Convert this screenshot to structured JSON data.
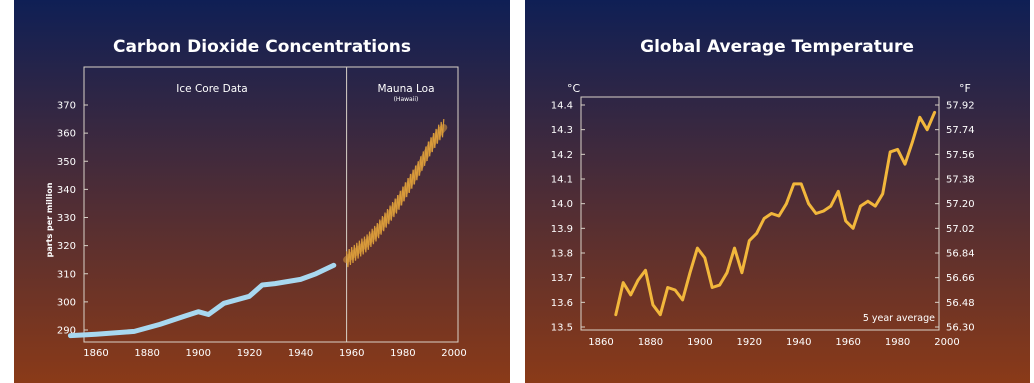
{
  "colors": {
    "panel_top": "#0f1f55",
    "panel_bottom": "#8a3a18",
    "ice_core_line": "#a8d8f0",
    "mauna_loa_line": "#d89a3a",
    "temperature_line": "#f2b73c",
    "text": "#ffffff",
    "frame": "#d9d2c8"
  },
  "chart_data": [
    {
      "type": "line",
      "title": "Carbon Dioxide Concentrations",
      "xlabel": "",
      "ylabel": "parts per million",
      "xlim": [
        1850,
        2000
      ],
      "ylim": [
        285,
        370
      ],
      "x_ticks": [
        1860,
        1880,
        1900,
        1920,
        1940,
        1960,
        1980,
        2000
      ],
      "y_ticks": [
        290,
        300,
        310,
        320,
        330,
        340,
        350,
        360,
        370
      ],
      "grid": false,
      "annotations": [
        {
          "text": "Ice Core Data"
        },
        {
          "text": "Mauna Loa"
        },
        {
          "text": "(Hawaii)"
        }
      ],
      "divider_x": 1958,
      "series": [
        {
          "name": "Ice Core Data",
          "x": [
            1850,
            1860,
            1875,
            1885,
            1895,
            1900,
            1904,
            1910,
            1920,
            1925,
            1930,
            1940,
            1946,
            1953
          ],
          "y": [
            288,
            288.5,
            289.5,
            292,
            295,
            296.5,
            295.5,
            299.5,
            302,
            306,
            306.5,
            308,
            310,
            313
          ]
        },
        {
          "name": "Mauna Loa",
          "x": [
            1958,
            1962,
            1966,
            1970,
            1974,
            1978,
            1982,
            1986,
            1990,
            1994,
            1996
          ],
          "y": [
            315,
            318,
            321,
            325,
            330,
            335,
            341,
            347,
            354,
            360,
            362
          ]
        }
      ]
    },
    {
      "type": "line",
      "title": "Global Average Temperature",
      "xlabel": "",
      "ylabel": "°C",
      "ylabel_right": "°F",
      "xlim": [
        1850,
        2000
      ],
      "ylim": [
        13.5,
        14.4
      ],
      "x_ticks": [
        1860,
        1880,
        1900,
        1920,
        1940,
        1960,
        1980,
        2000
      ],
      "y_ticks": [
        13.5,
        13.6,
        13.7,
        13.8,
        13.9,
        14.0,
        14.1,
        14.2,
        14.3,
        14.4
      ],
      "y_ticks_right": [
        56.3,
        56.48,
        56.66,
        56.84,
        57.02,
        57.2,
        57.38,
        57.56,
        57.74,
        57.92
      ],
      "y_ticks_right_labels": [
        "56.30",
        "56.48",
        "56.66",
        "56.84",
        "57.02",
        "57.20",
        "57.38",
        "57.56",
        "57.74",
        "57.92"
      ],
      "grid": false,
      "annotations": [
        {
          "text": "5 year average"
        }
      ],
      "series": [
        {
          "name": "5 year average",
          "x": [
            1866,
            1869,
            1872,
            1875,
            1878,
            1881,
            1884,
            1887,
            1890,
            1893,
            1896,
            1899,
            1902,
            1905,
            1908,
            1911,
            1914,
            1917,
            1920,
            1923,
            1926,
            1929,
            1932,
            1935,
            1938,
            1941,
            1944,
            1947,
            1950,
            1953,
            1956,
            1959,
            1962,
            1965,
            1968,
            1971,
            1974,
            1977,
            1980,
            1983,
            1986,
            1989,
            1992,
            1995
          ],
          "y": [
            13.55,
            13.68,
            13.63,
            13.69,
            13.73,
            13.59,
            13.55,
            13.66,
            13.65,
            13.61,
            13.72,
            13.82,
            13.78,
            13.66,
            13.67,
            13.72,
            13.82,
            13.72,
            13.85,
            13.88,
            13.94,
            13.96,
            13.95,
            14.0,
            14.08,
            14.08,
            14.0,
            13.96,
            13.97,
            13.99,
            14.05,
            13.93,
            13.9,
            13.99,
            14.01,
            13.99,
            14.04,
            14.21,
            14.22,
            14.16,
            14.25,
            14.35,
            14.3,
            14.37
          ]
        }
      ]
    }
  ]
}
